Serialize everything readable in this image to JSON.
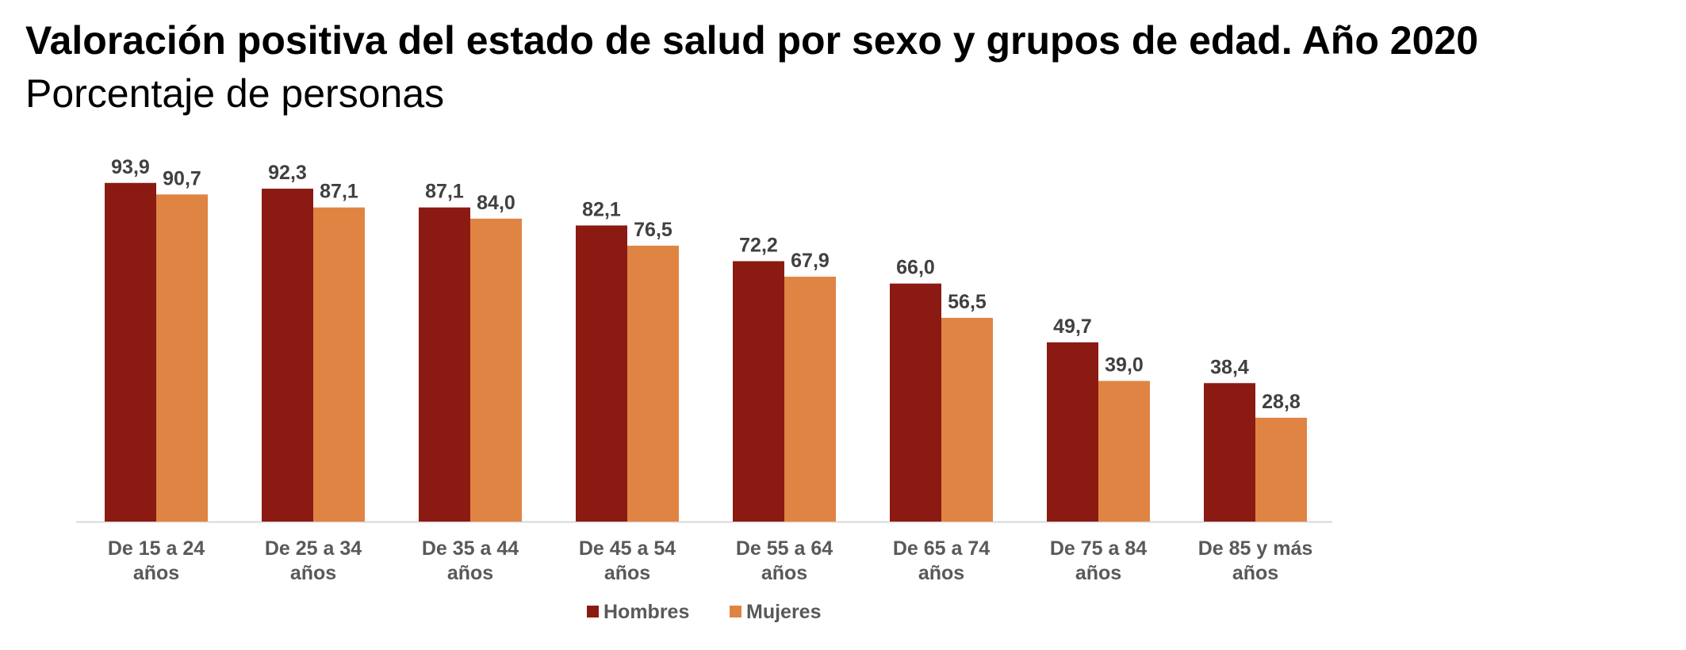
{
  "title": "Valoración positiva del estado de salud por sexo y grupos de edad. Año 2020",
  "subtitle": "Porcentaje de personas",
  "chart_data": {
    "type": "bar",
    "title": "Valoración positiva del estado de salud por sexo y grupos de edad. Año 2020",
    "subtitle": "Porcentaje de personas",
    "categories": [
      [
        "De 15 a 24",
        "años"
      ],
      [
        "De 25 a 34",
        "años"
      ],
      [
        "De 35 a 44",
        "años"
      ],
      [
        "De 45 a 54",
        "años"
      ],
      [
        "De 55 a 64",
        "años"
      ],
      [
        "De 65 a 74",
        "años"
      ],
      [
        "De 75 a 84",
        "años"
      ],
      [
        "De 85 y más",
        "años"
      ]
    ],
    "series": [
      {
        "name": "Hombres",
        "color": "#8B1A12",
        "values": [
          93.9,
          92.3,
          87.1,
          82.1,
          72.2,
          66.0,
          49.7,
          38.4
        ],
        "labels": [
          "93,9",
          "92,3",
          "87,1",
          "82,1",
          "72,2",
          "66,0",
          "49,7",
          "38,4"
        ]
      },
      {
        "name": "Mujeres",
        "color": "#E08444",
        "values": [
          90.7,
          87.1,
          84.0,
          76.5,
          67.9,
          56.5,
          39.0,
          28.8
        ],
        "labels": [
          "90,7",
          "87,1",
          "84,0",
          "76,5",
          "67,9",
          "56,5",
          "39,0",
          "28,8"
        ]
      }
    ],
    "ylim": [
      0,
      100
    ],
    "grid": false,
    "legend_position": "bottom"
  }
}
